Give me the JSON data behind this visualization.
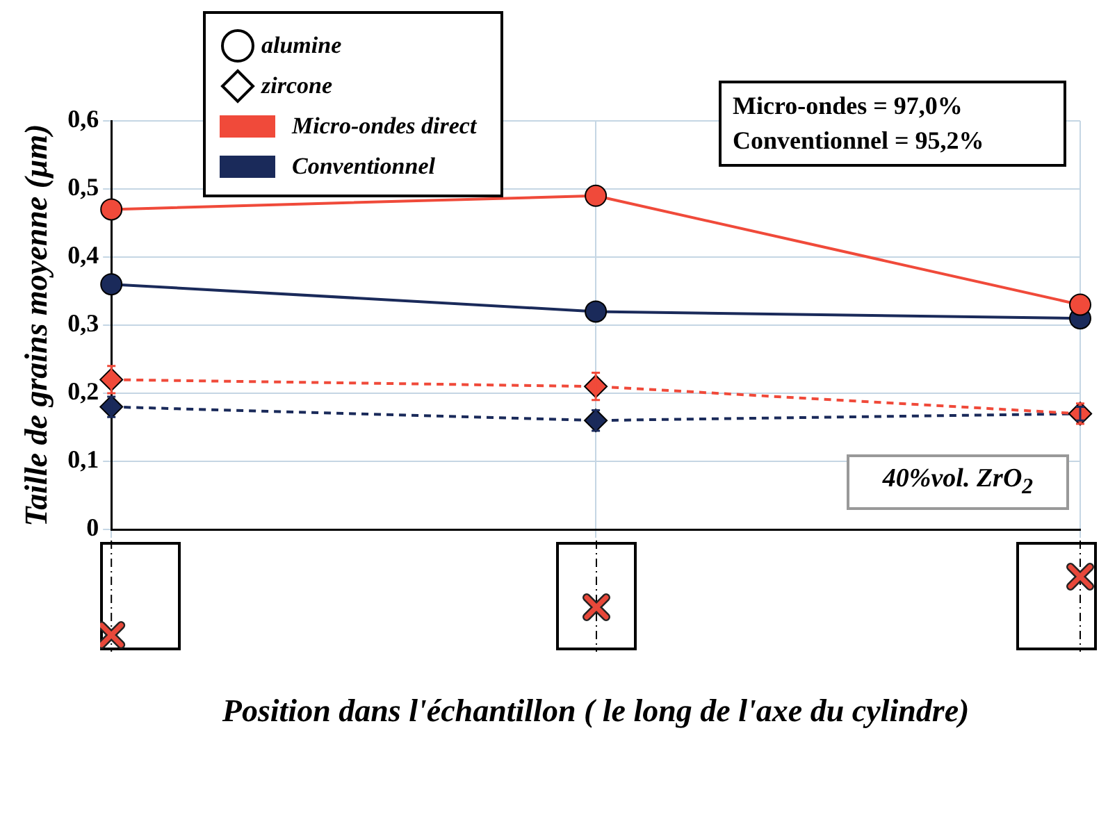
{
  "chart_data": {
    "type": "line",
    "xlabel": "Position dans l'échantillon ( le long de l'axe du cylindre)",
    "ylabel": "Taille de grains moyenne (µm)",
    "categories": [
      null,
      null,
      null
    ],
    "series": [
      {
        "color": "#f04a3a",
        "values": [
          0.47,
          0.49,
          0.33
        ],
        "marker": "circle",
        "line_style": "solid"
      },
      {
        "color": "#1a2a5a",
        "values": [
          0.36,
          0.32,
          0.31
        ],
        "marker": "circle",
        "line_style": "solid"
      },
      {
        "color": "#f04a3a",
        "values": [
          0.22,
          0.21,
          0.17
        ],
        "marker": "diamond",
        "line_style": "dashed",
        "errors": [
          0.02,
          0.02,
          0.015
        ]
      },
      {
        "color": "#1a2a5a",
        "values": [
          0.18,
          0.16,
          0.17
        ],
        "marker": "diamond",
        "line_style": "dashed",
        "errors": [
          0.015,
          0.015,
          0.01
        ]
      }
    ],
    "ylim": [
      0,
      0.6
    ],
    "yticks": [
      0,
      {
        "value": 0.1,
        "label": "0,1"
      },
      {
        "value": 0.2,
        "label": "0,2"
      },
      {
        "value": 0.3,
        "label": "0,3"
      },
      {
        "value": 0.4,
        "label": "0,4"
      },
      {
        "value": 0.5,
        "label": "0,5"
      },
      {
        "value": 0.6,
        "label": "0,6"
      }
    ],
    "grid": true,
    "annotations": [
      "alumine",
      "zircone",
      "Micro-ondes direct",
      "Conventionnel",
      "Micro-ondes = 97,0%",
      "Conventionnel = 95,2%",
      "40%vol. ZrO$_{2}$"
    ]
  }
}
